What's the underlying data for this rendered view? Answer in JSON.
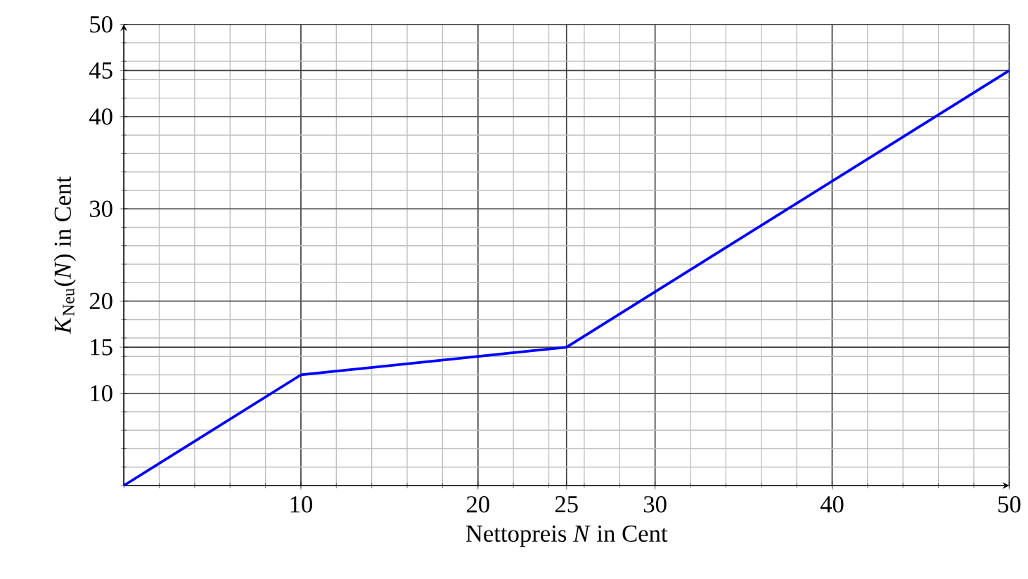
{
  "chart_data": {
    "type": "line",
    "xlabel": "Nettopreis *N* in Cent",
    "ylabel": "*K*$_{Neu}$(*N*) in Cent",
    "x": [
      0,
      10,
      25,
      50
    ],
    "series": [
      {
        "color": "#0000ff",
        "values": [
          0,
          12,
          15,
          45
        ]
      }
    ],
    "xlim": [
      0,
      50
    ],
    "ylim": [
      0,
      50
    ],
    "xticks": [
      10,
      20,
      25,
      30,
      40,
      50
    ],
    "yticks": [
      10,
      15,
      20,
      30,
      40,
      45,
      50
    ],
    "grid": true,
    "marker": "none",
    "line_style": "solid"
  }
}
